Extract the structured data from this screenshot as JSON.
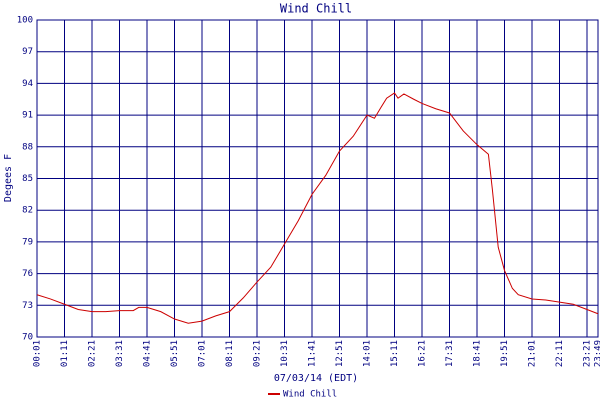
{
  "chart_data": {
    "type": "line",
    "title": "Wind Chill",
    "ylabel": "Degees F",
    "xlabel": "07/03/14 (EDT)",
    "ylim": [
      70,
      100
    ],
    "yticks": [
      70,
      73,
      76,
      79,
      82,
      85,
      88,
      91,
      94,
      97,
      100
    ],
    "xlim": [
      1,
      1429
    ],
    "xticks": [
      {
        "value": 1,
        "label": "00:01"
      },
      {
        "value": 71,
        "label": "01:11"
      },
      {
        "value": 141,
        "label": "02:21"
      },
      {
        "value": 211,
        "label": "03:31"
      },
      {
        "value": 281,
        "label": "04:41"
      },
      {
        "value": 351,
        "label": "05:51"
      },
      {
        "value": 421,
        "label": "07:01"
      },
      {
        "value": 491,
        "label": "08:11"
      },
      {
        "value": 561,
        "label": "09:21"
      },
      {
        "value": 631,
        "label": "10:31"
      },
      {
        "value": 701,
        "label": "11:41"
      },
      {
        "value": 771,
        "label": "12:51"
      },
      {
        "value": 841,
        "label": "14:01"
      },
      {
        "value": 911,
        "label": "15:11"
      },
      {
        "value": 981,
        "label": "16:21"
      },
      {
        "value": 1051,
        "label": "17:31"
      },
      {
        "value": 1121,
        "label": "18:41"
      },
      {
        "value": 1191,
        "label": "19:51"
      },
      {
        "value": 1261,
        "label": "21:01"
      },
      {
        "value": 1331,
        "label": "22:11"
      },
      {
        "value": 1401,
        "label": "23:21"
      },
      {
        "value": 1429,
        "label": "23:49"
      }
    ],
    "grid": true,
    "legend": "bottom",
    "x": [
      1,
      35,
      71,
      106,
      141,
      176,
      211,
      246,
      260,
      281,
      316,
      351,
      386,
      421,
      456,
      491,
      526,
      561,
      596,
      631,
      666,
      701,
      736,
      771,
      806,
      841,
      860,
      876,
      891,
      911,
      920,
      935,
      960,
      981,
      1016,
      1051,
      1086,
      1121,
      1150,
      1160,
      1175,
      1191,
      1211,
      1226,
      1261,
      1296,
      1331,
      1366,
      1401,
      1429
    ],
    "series": [
      {
        "name": "Wind Chill",
        "color": "#cc0000",
        "values": [
          74.0,
          73.6,
          73.1,
          72.6,
          72.4,
          72.4,
          72.5,
          72.5,
          72.8,
          72.8,
          72.4,
          71.7,
          71.3,
          71.5,
          72.0,
          72.4,
          73.7,
          75.2,
          76.6,
          78.8,
          81.0,
          83.5,
          85.3,
          87.6,
          89.0,
          91.0,
          90.7,
          91.7,
          92.6,
          93.1,
          92.6,
          93.0,
          92.5,
          92.1,
          91.6,
          91.2,
          89.5,
          88.2,
          87.3,
          84.0,
          78.5,
          76.3,
          74.6,
          74.0,
          73.6,
          73.5,
          73.3,
          73.1,
          72.6,
          72.2
        ]
      }
    ]
  }
}
